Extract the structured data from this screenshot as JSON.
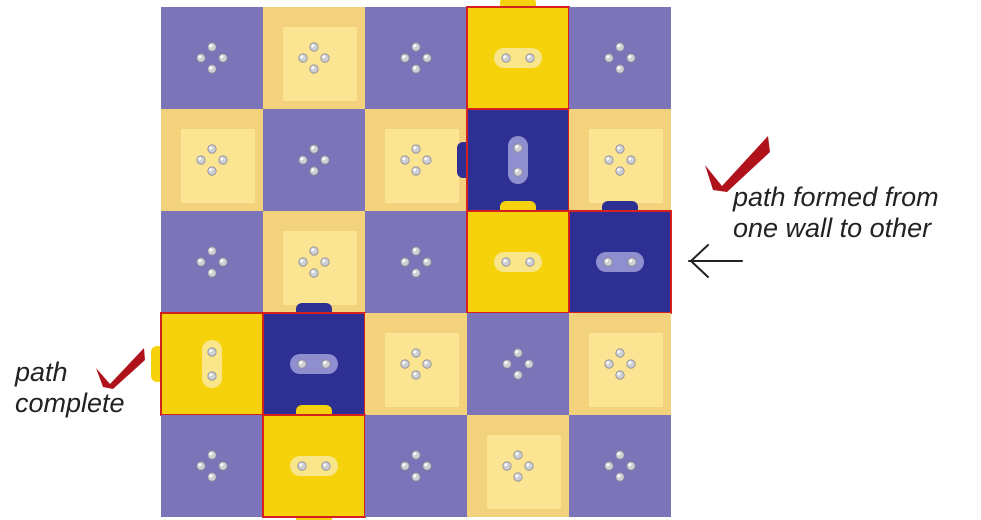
{
  "colors": {
    "light_purple": "#7c74b8",
    "light_yellow_outer": "#f3d27e",
    "light_yellow_inner": "#fbe592",
    "dark_blue": "#2e2f92",
    "bright_yellow": "#f6d20c",
    "path_border": "#d42020",
    "checkmark": "#b0121c",
    "stud": "#cfcfd6",
    "text": "#222222"
  },
  "board": {
    "rows": 5,
    "cols": 5,
    "tiles": [
      [
        "purple",
        "cream",
        "purple",
        "yellow-h",
        "purple"
      ],
      [
        "cream",
        "purple",
        "cream",
        "blue-v",
        "cream"
      ],
      [
        "purple",
        "cream",
        "purple",
        "yellow-h",
        "blue-h"
      ],
      [
        "yellow-v",
        "blue-h",
        "cream",
        "purple",
        "cream"
      ],
      [
        "purple",
        "yellow-h",
        "purple",
        "cream",
        "purple"
      ]
    ]
  },
  "annotations": {
    "right_line1": "path formed from",
    "right_line2": "one wall to other",
    "left_line1": "path",
    "left_line2": "complete"
  },
  "icons": {
    "check_right": "checkmark-icon",
    "check_left": "checkmark-icon",
    "arrow": "arrow-left-icon"
  }
}
